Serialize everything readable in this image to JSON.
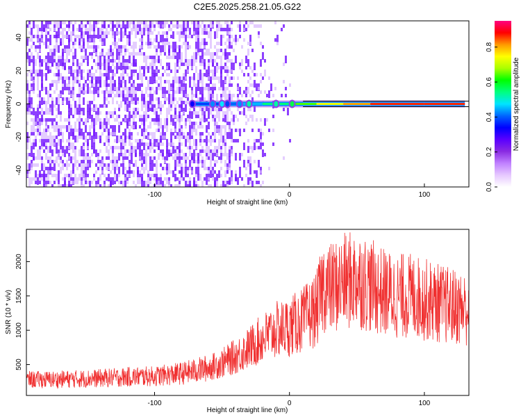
{
  "figure": {
    "title": "C2E5.2025.258.21.05.G22"
  },
  "chart_data": [
    {
      "type": "heatmap",
      "title": "C2E5.2025.258.21.05.G22",
      "xlabel": "Height of straight line (km)",
      "ylabel": "Frequency (Hz)",
      "xlim": [
        -195,
        133
      ],
      "ylim": [
        -50,
        50
      ],
      "x_ticks": [
        -100,
        0,
        100
      ],
      "x_tick_labels": [
        "-100",
        "0",
        "100"
      ],
      "y_ticks": [
        -40,
        -20,
        0,
        20,
        40
      ],
      "y_tick_labels": [
        "-40",
        "-20",
        "0",
        "20",
        "40"
      ],
      "grid": false,
      "colorbar": {
        "label": "Normalized spectral amplitude",
        "range": [
          0.0,
          0.95
        ],
        "ticks": [
          0.0,
          0.2,
          0.4,
          0.6,
          0.8
        ],
        "tick_labels": [
          "0.0",
          "0.2",
          "0.4",
          "0.6",
          "0.8"
        ],
        "colormap": [
          "#ffffff",
          "#e6c8ff",
          "#c080ff",
          "#8a2be2",
          "#5a00ff",
          "#0000ff",
          "#0066ff",
          "#00e5ff",
          "#00ff80",
          "#00ff00",
          "#aaff00",
          "#ffff00",
          "#ff9900",
          "#ff0000",
          "#ff0080"
        ]
      },
      "ridge": {
        "frequency_hz": 0,
        "description_points": [
          {
            "x": -72,
            "amp": 0.35
          },
          {
            "x": -50,
            "amp": 0.45
          },
          {
            "x": -35,
            "amp": 0.4
          },
          {
            "x": -20,
            "amp": 0.55
          },
          {
            "x": 0,
            "amp": 0.6
          },
          {
            "x": 20,
            "amp": 0.75
          },
          {
            "x": 40,
            "amp": 0.8
          },
          {
            "x": 60,
            "amp": 0.9
          },
          {
            "x": 100,
            "amp": 0.92
          },
          {
            "x": 130,
            "amp": 0.9
          }
        ]
      },
      "noise_region_x": [
        -195,
        -20
      ],
      "colors": {
        "noise": "#7a1fff",
        "noise_light": "#d9b8ff"
      }
    },
    {
      "type": "line",
      "xlabel": "Height of straight line (km)",
      "ylabel": "SNR (10 * v/v)",
      "xlim": [
        -195,
        133
      ],
      "ylim": [
        50,
        2470
      ],
      "x_ticks": [
        -100,
        0,
        100
      ],
      "x_tick_labels": [
        "-100",
        "0",
        "100"
      ],
      "y_ticks": [
        500,
        1000,
        1500,
        2000
      ],
      "y_tick_labels": [
        "500",
        "1000",
        "1500",
        "2000"
      ],
      "grid": false,
      "color": "#f03030",
      "x": [
        -195,
        -180,
        -160,
        -140,
        -120,
        -100,
        -80,
        -60,
        -50,
        -40,
        -30,
        -20,
        -10,
        0,
        10,
        20,
        25,
        30,
        40,
        50,
        60,
        70,
        80,
        90,
        100,
        110,
        120,
        133
      ],
      "y": [
        280,
        280,
        290,
        300,
        320,
        330,
        370,
        450,
        520,
        620,
        740,
        880,
        1000,
        1050,
        1150,
        1300,
        1650,
        1600,
        1700,
        1750,
        1650,
        1550,
        1500,
        1500,
        1450,
        1400,
        1350,
        1300
      ]
    }
  ]
}
